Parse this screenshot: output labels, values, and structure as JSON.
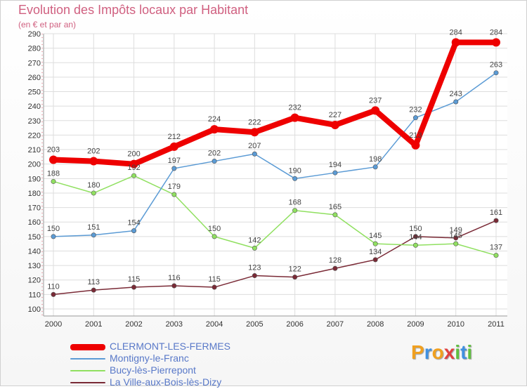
{
  "title": "Evolution des Impôts locaux par Habitant",
  "subtitle": "(en € et par an)",
  "chart_data": {
    "type": "line",
    "x": [
      "2000",
      "2001",
      "2002",
      "2003",
      "2004",
      "2005",
      "2006",
      "2007",
      "2008",
      "2009",
      "2010",
      "2011"
    ],
    "ylim": [
      100,
      290
    ],
    "yticks": [
      100,
      110,
      120,
      130,
      140,
      150,
      160,
      170,
      180,
      190,
      200,
      210,
      220,
      230,
      240,
      250,
      260,
      270,
      280,
      290
    ],
    "grid": true,
    "legend_position": "bottom-left",
    "series": [
      {
        "name": "CLERMONT-LES-FERMES",
        "color": "#ee0000",
        "width": 8,
        "values": [
          203,
          202,
          200,
          212,
          224,
          222,
          232,
          227,
          237,
          213,
          284,
          284
        ],
        "labels": [
          "203",
          "202",
          "200",
          "212",
          "224",
          "222",
          "232",
          "227",
          "237",
          "213",
          "284",
          "284"
        ]
      },
      {
        "name": "Montigny-le-Franc",
        "color": "#5b9bd5",
        "width": 1.5,
        "values": [
          150,
          151,
          154,
          197,
          202,
          207,
          190,
          194,
          198,
          232,
          243,
          263
        ],
        "labels": [
          "150",
          "151",
          "154",
          "197",
          "202",
          "207",
          "190",
          "194",
          "198",
          "232",
          "243",
          "263"
        ]
      },
      {
        "name": "Bucy-lès-Pierrepont",
        "color": "#90e060",
        "width": 1.5,
        "values": [
          188,
          180,
          192,
          179,
          150,
          142,
          168,
          165,
          145,
          144,
          145,
          137
        ],
        "labels": [
          "188",
          "180",
          "192",
          "179",
          "150",
          "142",
          "168",
          "165",
          "145",
          "144",
          "145",
          "137"
        ]
      },
      {
        "name": "La Ville-aux-Bois-lès-Dizy",
        "color": "#7a2a36",
        "width": 1.5,
        "values": [
          110,
          113,
          115,
          116,
          115,
          123,
          122,
          128,
          134,
          150,
          149,
          161
        ],
        "labels": [
          "110",
          "113",
          "115",
          "116",
          "115",
          "123",
          "122",
          "128",
          "134",
          "150",
          "149",
          "161"
        ]
      }
    ]
  },
  "logo": {
    "text": "Proxiti",
    "letters": [
      {
        "ch": "P",
        "color": "#f0a020"
      },
      {
        "ch": "r",
        "color": "#4090e0"
      },
      {
        "ch": "o",
        "color": "#f0a020"
      },
      {
        "ch": "x",
        "color": "#e04040"
      },
      {
        "ch": "i",
        "color": "#60c040"
      },
      {
        "ch": "t",
        "color": "#4090e0"
      },
      {
        "ch": "i",
        "color": "#60c040"
      }
    ]
  }
}
